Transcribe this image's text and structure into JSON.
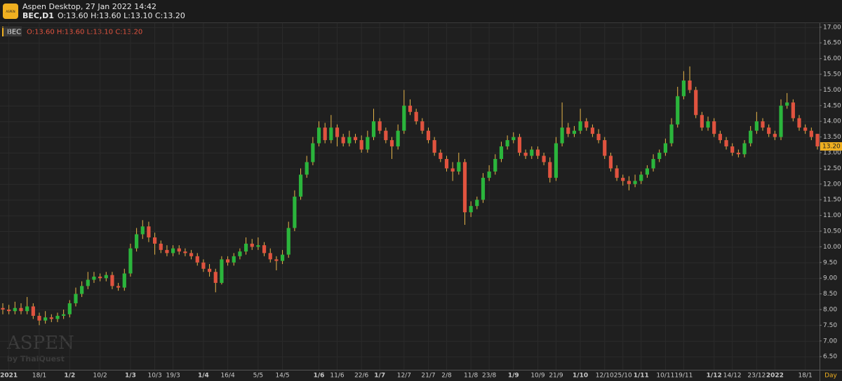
{
  "header": {
    "app_title": "Aspen Desktop, 27 Jan 2022 14:42",
    "symbol": "BEC,D1",
    "ohlc": "O:13.60 H:13.60 L:13.10 C:13.20",
    "logo_text": "ASPEN"
  },
  "watermark": {
    "brand": "ASPEN",
    "by": "by ThaiQuest"
  },
  "chart_data": {
    "type": "candlestick",
    "legend_symbol": "BEC",
    "legend_ohlc": "O:13.60 H:13.60 L:13.10 C:13.20",
    "timeframe": "Day",
    "up_color": "#2bb53c",
    "down_color": "#e0533f",
    "wick_color": "#e6b54a",
    "grid": true,
    "ylim": [
      6.08,
      17.13
    ],
    "yticks": [
      {
        "value": 6.5,
        "label": "6.50"
      },
      {
        "value": 7,
        "label": "7.00"
      },
      {
        "value": 7.5,
        "label": "7.50"
      },
      {
        "value": 8,
        "label": "8.00"
      },
      {
        "value": 8.5,
        "label": "8.50"
      },
      {
        "value": 9,
        "label": "9.00"
      },
      {
        "value": 9.5,
        "label": "9.50"
      },
      {
        "value": 10,
        "label": "10.00"
      },
      {
        "value": 10.5,
        "label": "10.50"
      },
      {
        "value": 11,
        "label": "11.00"
      },
      {
        "value": 11.5,
        "label": "11.50"
      },
      {
        "value": 12,
        "label": "12.00"
      },
      {
        "value": 12.5,
        "label": "12.50"
      },
      {
        "value": 13,
        "label": "13.00"
      },
      {
        "value": 13.5,
        "label": "13.50"
      },
      {
        "value": 14,
        "label": "14.00"
      },
      {
        "value": 14.5,
        "label": "14.50"
      },
      {
        "value": 15,
        "label": "15.00"
      },
      {
        "value": 15.5,
        "label": "15.50"
      },
      {
        "value": 16,
        "label": "16.00"
      },
      {
        "value": 16.5,
        "label": "16.50"
      },
      {
        "value": 17,
        "label": "17.00"
      }
    ],
    "last_label": {
      "value": 13.2,
      "label": "13.20"
    },
    "categories": [
      null,
      "2021",
      null,
      null,
      null,
      null,
      "18/1",
      null,
      null,
      null,
      null,
      "1/2",
      null,
      null,
      null,
      null,
      "10/2",
      null,
      null,
      null,
      null,
      "1/3",
      null,
      null,
      null,
      "10/3",
      null,
      null,
      "19/3",
      null,
      null,
      null,
      null,
      "1/4",
      null,
      null,
      null,
      "16/4",
      null,
      null,
      null,
      null,
      "5/5",
      null,
      null,
      null,
      "14/5",
      null,
      null,
      null,
      null,
      null,
      "1/6",
      null,
      null,
      "11/6",
      null,
      null,
      null,
      "22/6",
      null,
      null,
      "1/7",
      null,
      null,
      null,
      "12/7",
      null,
      null,
      null,
      "21/7",
      null,
      null,
      "2/8",
      null,
      null,
      null,
      "11/8",
      null,
      null,
      "23/8",
      null,
      null,
      null,
      "1/9",
      null,
      null,
      null,
      "10/9",
      null,
      null,
      "21/9",
      null,
      null,
      null,
      "1/10",
      null,
      null,
      null,
      "12/10",
      null,
      null,
      "25/10",
      null,
      null,
      "1/11",
      null,
      null,
      null,
      "10/11",
      null,
      null,
      "19/11",
      null,
      null,
      null,
      null,
      "1/12",
      null,
      null,
      "14/12",
      null,
      null,
      null,
      "23/12",
      null,
      null,
      "2022",
      null,
      null,
      null,
      null,
      "18/1",
      null,
      null
    ],
    "open": [
      8.05,
      8.0,
      7.95,
      8.05,
      7.95,
      8.1,
      7.8,
      7.65,
      7.75,
      7.7,
      7.8,
      7.85,
      8.2,
      8.5,
      8.75,
      8.95,
      9.05,
      9.0,
      9.1,
      8.75,
      8.7,
      9.15,
      9.95,
      10.4,
      10.65,
      10.3,
      10.1,
      9.9,
      9.8,
      9.95,
      9.85,
      9.8,
      9.7,
      9.5,
      9.3,
      9.2,
      8.85,
      9.6,
      9.5,
      9.7,
      9.85,
      10.1,
      10.0,
      10.05,
      9.8,
      9.6,
      9.55,
      9.75,
      10.6,
      11.6,
      12.3,
      12.7,
      13.3,
      13.8,
      13.4,
      13.8,
      13.5,
      13.3,
      13.5,
      13.4,
      13.1,
      13.5,
      14.0,
      13.7,
      13.4,
      13.2,
      13.7,
      14.5,
      14.3,
      14.0,
      13.7,
      13.4,
      13.0,
      12.8,
      12.5,
      12.4,
      12.7,
      11.1,
      11.3,
      11.5,
      12.2,
      12.4,
      12.8,
      13.2,
      13.4,
      13.5,
      13.0,
      12.9,
      13.1,
      12.9,
      12.7,
      12.2,
      13.3,
      13.8,
      13.6,
      13.7,
      14.0,
      13.8,
      13.6,
      13.4,
      12.9,
      12.5,
      12.2,
      12.1,
      12.0,
      12.1,
      12.3,
      12.5,
      12.8,
      13.0,
      13.3,
      13.9,
      14.8,
      15.3,
      15.0,
      14.2,
      13.8,
      14.0,
      13.6,
      13.4,
      13.2,
      13.0,
      12.95,
      13.3,
      13.7,
      14.0,
      13.8,
      13.6,
      13.5,
      14.5,
      14.6,
      14.1,
      13.8,
      13.7,
      13.6
    ],
    "high": [
      8.2,
      8.15,
      8.25,
      8.2,
      8.4,
      8.2,
      7.9,
      7.95,
      7.85,
      7.9,
      8.0,
      8.3,
      8.7,
      8.9,
      9.2,
      9.2,
      9.15,
      9.2,
      9.2,
      8.85,
      9.3,
      10.1,
      10.6,
      10.85,
      10.8,
      10.45,
      10.2,
      10.05,
      10.05,
      10.05,
      9.95,
      9.9,
      9.8,
      9.6,
      9.45,
      9.3,
      9.7,
      9.7,
      9.8,
      9.95,
      10.3,
      10.25,
      10.3,
      10.15,
      9.95,
      9.7,
      9.9,
      10.8,
      11.8,
      12.5,
      12.9,
      13.5,
      14.0,
      13.95,
      14.2,
      13.9,
      13.6,
      13.7,
      13.6,
      13.55,
      13.7,
      14.4,
      14.1,
      13.8,
      13.5,
      13.9,
      15.0,
      14.7,
      14.4,
      14.1,
      13.8,
      13.5,
      13.1,
      12.9,
      12.7,
      13.0,
      12.8,
      11.45,
      11.6,
      12.35,
      12.6,
      12.95,
      13.35,
      13.55,
      13.65,
      13.6,
      13.1,
      13.2,
      13.2,
      13.0,
      12.85,
      13.5,
      14.6,
      13.95,
      13.85,
      14.4,
      14.1,
      13.9,
      13.75,
      13.5,
      13.0,
      12.6,
      12.3,
      12.25,
      12.3,
      12.4,
      12.6,
      12.95,
      13.1,
      13.45,
      14.1,
      15.1,
      15.6,
      15.75,
      15.1,
      14.3,
      14.15,
      14.1,
      13.7,
      13.5,
      13.3,
      13.1,
      13.4,
      13.85,
      14.3,
      14.1,
      13.9,
      13.7,
      14.7,
      14.9,
      14.7,
      14.2,
      13.9,
      13.8,
      13.6
    ],
    "low": [
      7.85,
      7.85,
      7.85,
      7.85,
      7.85,
      7.7,
      7.5,
      7.55,
      7.6,
      7.6,
      7.7,
      7.75,
      8.1,
      8.4,
      8.65,
      8.85,
      8.9,
      8.9,
      8.65,
      8.6,
      8.6,
      9.05,
      9.85,
      10.25,
      10.15,
      9.75,
      9.8,
      9.7,
      9.7,
      9.75,
      9.7,
      9.6,
      9.4,
      9.2,
      9.05,
      8.55,
      8.8,
      9.4,
      9.4,
      9.6,
      9.75,
      9.9,
      9.9,
      9.7,
      9.5,
      9.25,
      9.45,
      9.65,
      10.5,
      11.5,
      12.2,
      12.6,
      13.2,
      13.3,
      13.3,
      13.2,
      13.2,
      13.2,
      13.3,
      13.0,
      13.0,
      13.4,
      13.6,
      13.3,
      12.8,
      13.1,
      13.6,
      14.2,
      13.9,
      13.6,
      13.3,
      12.9,
      12.7,
      12.4,
      12.1,
      12.3,
      10.7,
      10.95,
      11.2,
      11.4,
      12.1,
      12.3,
      12.7,
      13.1,
      13.3,
      12.9,
      12.8,
      12.8,
      12.8,
      12.6,
      12.05,
      12.1,
      13.2,
      13.5,
      13.5,
      13.6,
      13.7,
      13.5,
      13.3,
      12.8,
      12.4,
      12.1,
      11.95,
      11.8,
      11.9,
      12.0,
      12.2,
      12.4,
      12.7,
      12.9,
      13.2,
      13.8,
      14.7,
      14.9,
      14.1,
      13.7,
      13.7,
      13.5,
      13.3,
      13.1,
      12.9,
      12.85,
      12.85,
      13.2,
      13.6,
      13.7,
      13.5,
      13.4,
      13.4,
      14.4,
      14.0,
      13.7,
      13.6,
      13.4,
      13.1
    ],
    "close": [
      8.0,
      7.95,
      8.05,
      7.95,
      8.1,
      7.8,
      7.65,
      7.75,
      7.7,
      7.8,
      7.85,
      8.2,
      8.5,
      8.75,
      8.95,
      9.05,
      9.0,
      9.1,
      8.75,
      8.7,
      9.15,
      9.95,
      10.4,
      10.65,
      10.3,
      10.1,
      9.9,
      9.8,
      9.95,
      9.85,
      9.8,
      9.7,
      9.5,
      9.3,
      9.2,
      8.85,
      9.6,
      9.5,
      9.7,
      9.85,
      10.1,
      10.0,
      10.05,
      9.8,
      9.6,
      9.55,
      9.75,
      10.6,
      11.6,
      12.3,
      12.7,
      13.3,
      13.8,
      13.4,
      13.8,
      13.5,
      13.3,
      13.5,
      13.4,
      13.1,
      13.5,
      14.0,
      13.7,
      13.4,
      13.2,
      13.7,
      14.5,
      14.3,
      14.0,
      13.7,
      13.4,
      13.0,
      12.8,
      12.5,
      12.4,
      12.7,
      11.1,
      11.3,
      11.5,
      12.2,
      12.4,
      12.8,
      13.2,
      13.4,
      13.5,
      13.0,
      12.9,
      13.1,
      12.9,
      12.7,
      12.2,
      13.3,
      13.8,
      13.6,
      13.7,
      14.0,
      13.8,
      13.6,
      13.4,
      12.9,
      12.5,
      12.2,
      12.1,
      12.0,
      12.1,
      12.3,
      12.5,
      12.8,
      13.0,
      13.3,
      13.9,
      14.8,
      15.3,
      15.0,
      14.2,
      13.8,
      14.0,
      13.6,
      13.4,
      13.2,
      13.0,
      12.95,
      13.3,
      13.7,
      14.0,
      13.8,
      13.6,
      13.5,
      14.5,
      14.6,
      14.1,
      13.8,
      13.7,
      13.5,
      13.2
    ]
  }
}
